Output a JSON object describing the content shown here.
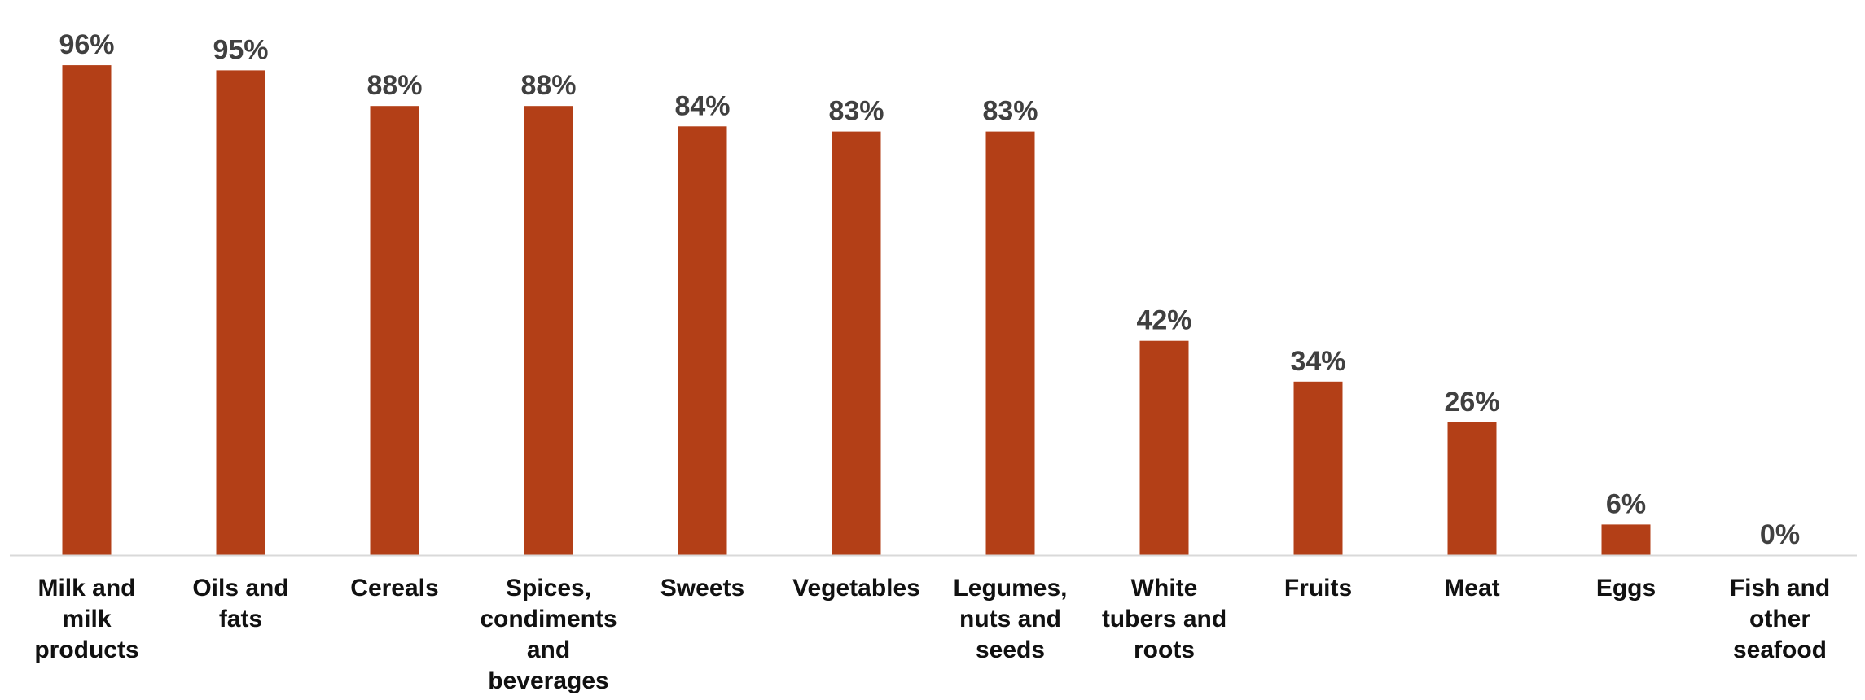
{
  "chart_data": {
    "type": "bar",
    "title": "",
    "xlabel": "",
    "ylabel": "",
    "ylim": [
      0,
      100
    ],
    "grid": false,
    "legend": "none",
    "bar_color": "#B33F17",
    "axis_color": "#D9D9D9",
    "value_label_color": "#404040",
    "category_label_color": "#111111",
    "categories": [
      "Milk and milk products",
      "Oils and fats",
      "Cereals",
      "Spices, condiments and beverages",
      "Sweets",
      "Vegetables",
      "Legumes, nuts and seeds",
      "White tubers and roots",
      "Fruits",
      "Meat",
      "Eggs",
      "Fish and other seafood"
    ],
    "values": [
      96,
      95,
      88,
      88,
      84,
      83,
      83,
      42,
      34,
      26,
      6,
      0
    ],
    "value_labels": [
      "96%",
      "95%",
      "88%",
      "88%",
      "84%",
      "83%",
      "83%",
      "42%",
      "34%",
      "26%",
      "6%",
      "0%"
    ]
  }
}
